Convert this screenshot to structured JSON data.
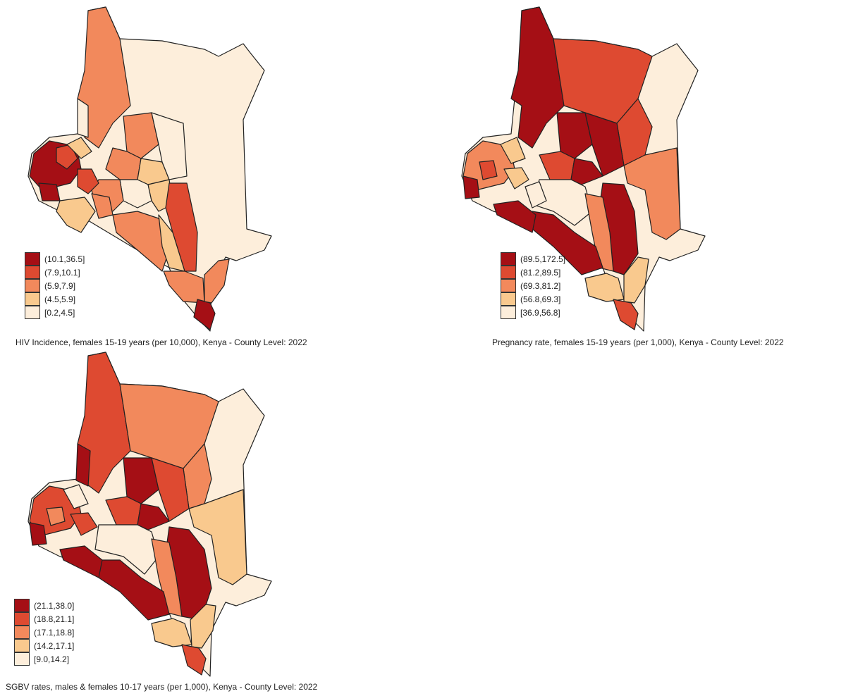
{
  "maps": [
    {
      "caption": "HIV Incidence, females 15-19 years (per 10,000), Kenya - County Level: 2022",
      "legend": [
        {
          "label": "(10.1,36.5]",
          "color": "#a50f15"
        },
        {
          "label": "(7.9,10.1]",
          "color": "#de4a31"
        },
        {
          "label": "(5.9,7.9]",
          "color": "#f2895c"
        },
        {
          "label": "(4.5,5.9]",
          "color": "#f9c98e"
        },
        {
          "label": "[0.2,4.5]",
          "color": "#fdeedb"
        }
      ]
    },
    {
      "caption": "Pregnancy rate, females 15-19 years (per 1,000), Kenya - County Level: 2022",
      "legend": [
        {
          "label": "(89.5,172.5]",
          "color": "#a50f15"
        },
        {
          "label": "(81.2,89.5]",
          "color": "#de4a31"
        },
        {
          "label": "(69.3,81.2]",
          "color": "#f2895c"
        },
        {
          "label": "(56.8,69.3]",
          "color": "#f9c98e"
        },
        {
          "label": "[36.9,56.8]",
          "color": "#fdeedb"
        }
      ]
    },
    {
      "caption": "SGBV rates, males & females 10-17 years (per 1,000), Kenya - County Level: 2022",
      "legend": [
        {
          "label": "(21.1,38.0]",
          "color": "#a50f15"
        },
        {
          "label": "(18.8,21.1]",
          "color": "#de4a31"
        },
        {
          "label": "(17.1,18.8]",
          "color": "#f2895c"
        },
        {
          "label": "(14.2,17.1]",
          "color": "#f9c98e"
        },
        {
          "label": "[9.0,14.2]",
          "color": "#fdeedb"
        }
      ]
    }
  ]
}
